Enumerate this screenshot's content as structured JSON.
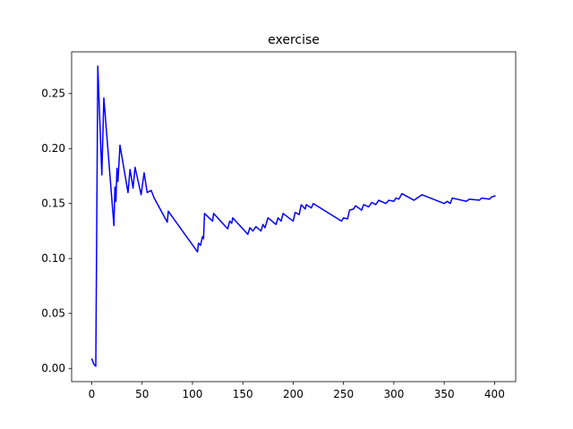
{
  "chart_data": {
    "type": "line",
    "title": "exercise",
    "x": [
      0,
      2,
      4,
      6,
      10,
      12,
      22,
      23,
      24,
      25,
      26,
      28,
      36,
      38,
      41,
      43,
      49,
      52,
      55,
      59,
      62,
      75,
      76,
      105,
      106,
      108,
      110,
      111,
      112,
      120,
      121,
      135,
      137,
      139,
      140,
      155,
      157,
      160,
      163,
      168,
      170,
      172,
      175,
      183,
      185,
      188,
      190,
      200,
      202,
      206,
      208,
      212,
      213,
      218,
      220,
      248,
      250,
      254,
      256,
      260,
      262,
      268,
      270,
      275,
      278,
      282,
      285,
      292,
      295,
      300,
      302,
      305,
      308,
      320,
      328,
      350,
      353,
      356,
      358,
      372,
      375,
      385,
      387,
      395,
      397,
      401
    ],
    "series": [
      {
        "name": "exercise",
        "color": "#0000ff",
        "values": [
          0.009,
          0.004,
          0.002,
          0.275,
          0.176,
          0.246,
          0.13,
          0.165,
          0.152,
          0.182,
          0.17,
          0.203,
          0.16,
          0.181,
          0.164,
          0.183,
          0.158,
          0.178,
          0.16,
          0.162,
          0.155,
          0.133,
          0.143,
          0.106,
          0.114,
          0.112,
          0.12,
          0.118,
          0.141,
          0.134,
          0.141,
          0.127,
          0.134,
          0.132,
          0.137,
          0.122,
          0.128,
          0.125,
          0.129,
          0.125,
          0.131,
          0.128,
          0.137,
          0.131,
          0.137,
          0.134,
          0.141,
          0.134,
          0.142,
          0.14,
          0.149,
          0.145,
          0.149,
          0.146,
          0.15,
          0.134,
          0.137,
          0.136,
          0.144,
          0.145,
          0.148,
          0.144,
          0.149,
          0.147,
          0.151,
          0.149,
          0.153,
          0.15,
          0.153,
          0.152,
          0.155,
          0.154,
          0.159,
          0.153,
          0.158,
          0.15,
          0.152,
          0.15,
          0.155,
          0.152,
          0.154,
          0.153,
          0.155,
          0.154,
          0.156,
          0.157
        ]
      }
    ],
    "xlim": [
      -20,
      421
    ],
    "ylim": [
      -0.012,
      0.288
    ],
    "xticks": [
      0,
      50,
      100,
      150,
      200,
      250,
      300,
      350,
      400
    ],
    "yticks": [
      {
        "value": 0,
        "label": "0.00"
      },
      {
        "value": 0.05,
        "label": "0.05"
      },
      {
        "value": 0.1,
        "label": "0.10"
      },
      {
        "value": 0.15,
        "label": "0.15"
      },
      {
        "value": 0.2,
        "label": "0.20"
      },
      {
        "value": 0.25,
        "label": "0.25"
      }
    ]
  }
}
